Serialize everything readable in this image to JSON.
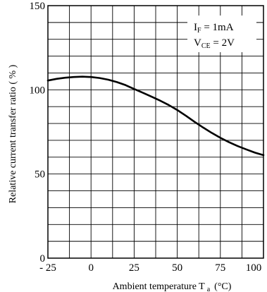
{
  "chart_data": {
    "type": "line",
    "xlabel": "Ambient temperature T",
    "xlabel_sub": "a",
    "xlabel_unit": "(°C)",
    "ylabel": "Relative current transfer ratio ( % )",
    "xlim": [
      -25,
      100
    ],
    "ylim": [
      0,
      150
    ],
    "x_ticks": [
      -25,
      0,
      25,
      50,
      75,
      100
    ],
    "x_tick_labels": [
      "- 25",
      "0",
      "25",
      "50",
      "75",
      "100"
    ],
    "y_ticks": [
      0,
      50,
      100,
      150
    ],
    "y_tick_labels": [
      "0",
      "50",
      "100",
      "150"
    ],
    "grid": true,
    "grid_x_step": 12.5,
    "grid_y_step": 10,
    "annotations": {
      "line1_main": "I",
      "line1_sub": "F",
      "line1_rest": " = 1mA",
      "line2_main": "V",
      "line2_sub": "CE",
      "line2_rest": " = 2V"
    },
    "series": [
      {
        "x": [
          -25,
          -20,
          -15,
          -10,
          -5,
          0,
          5,
          10,
          15,
          20,
          25,
          30,
          35,
          40,
          45,
          50,
          55,
          60,
          65,
          70,
          75,
          80,
          85,
          90,
          95,
          100
        ],
        "y": [
          105.5,
          106.5,
          107.2,
          107.6,
          107.8,
          107.6,
          107,
          106,
          104.6,
          102.8,
          100.5,
          98.3,
          96,
          93.6,
          91,
          88,
          84.6,
          81,
          77.6,
          74.4,
          71.5,
          68.9,
          66.6,
          64.6,
          62.7,
          61.2
        ]
      }
    ]
  }
}
